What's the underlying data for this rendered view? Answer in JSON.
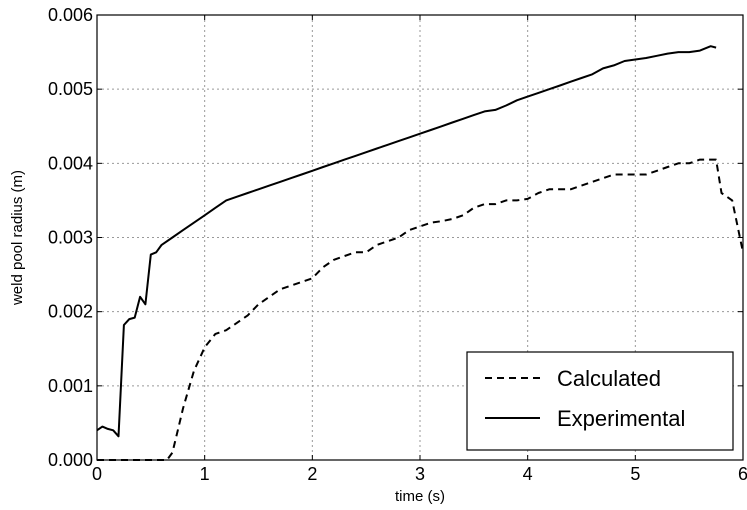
{
  "chart_data": {
    "type": "line",
    "xlabel": "time (s)",
    "ylabel": "weld pool radius (m)",
    "xlim": [
      0,
      6
    ],
    "ylim": [
      0,
      0.006
    ],
    "xticks": [
      "0",
      "1",
      "2",
      "3",
      "4",
      "5",
      "6"
    ],
    "yticks": [
      "0.000",
      "0.001",
      "0.002",
      "0.003",
      "0.004",
      "0.005",
      "0.006"
    ],
    "grid": true,
    "legend_position": "lower-right",
    "series": [
      {
        "name": "Calculated",
        "style": "dashed",
        "color": "#000000",
        "x": [
          0,
          0.65,
          0.7,
          0.75,
          0.8,
          0.9,
          1.0,
          1.1,
          1.2,
          1.3,
          1.4,
          1.5,
          1.6,
          1.7,
          1.8,
          1.9,
          2.0,
          2.1,
          2.2,
          2.3,
          2.4,
          2.5,
          2.6,
          2.7,
          2.8,
          2.9,
          3.0,
          3.1,
          3.2,
          3.3,
          3.4,
          3.5,
          3.6,
          3.7,
          3.8,
          3.9,
          4.0,
          4.1,
          4.2,
          4.3,
          4.4,
          4.5,
          4.6,
          4.7,
          4.8,
          4.9,
          5.0,
          5.1,
          5.2,
          5.3,
          5.4,
          5.5,
          5.6,
          5.7,
          5.75,
          5.8,
          5.9,
          6.0
        ],
        "y": [
          0,
          0,
          0.0001,
          0.0004,
          0.0007,
          0.0012,
          0.00152,
          0.0017,
          0.00175,
          0.00185,
          0.00195,
          0.0021,
          0.0022,
          0.0023,
          0.00235,
          0.0024,
          0.00245,
          0.0026,
          0.0027,
          0.00275,
          0.0028,
          0.0028,
          0.0029,
          0.00295,
          0.003,
          0.0031,
          0.00315,
          0.0032,
          0.00322,
          0.00325,
          0.0033,
          0.0034,
          0.00345,
          0.00345,
          0.0035,
          0.0035,
          0.00352,
          0.0036,
          0.00365,
          0.00365,
          0.00365,
          0.0037,
          0.00375,
          0.0038,
          0.00385,
          0.00385,
          0.00385,
          0.00385,
          0.0039,
          0.00395,
          0.004,
          0.004,
          0.00405,
          0.00405,
          0.00405,
          0.0036,
          0.0035,
          0.0028
        ]
      },
      {
        "name": "Experimental",
        "style": "solid",
        "color": "#000000",
        "x": [
          0,
          0.05,
          0.1,
          0.15,
          0.2,
          0.25,
          0.3,
          0.35,
          0.4,
          0.45,
          0.5,
          0.55,
          0.6,
          0.7,
          0.8,
          0.9,
          1.0,
          1.1,
          1.2,
          1.3,
          1.4,
          1.5,
          1.6,
          1.7,
          1.8,
          1.9,
          2.0,
          2.1,
          2.2,
          2.3,
          2.4,
          2.5,
          2.6,
          2.7,
          2.8,
          2.9,
          3.0,
          3.1,
          3.2,
          3.3,
          3.4,
          3.5,
          3.6,
          3.7,
          3.8,
          3.9,
          4.0,
          4.1,
          4.2,
          4.3,
          4.4,
          4.5,
          4.6,
          4.7,
          4.8,
          4.9,
          5.0,
          5.1,
          5.2,
          5.3,
          5.4,
          5.5,
          5.6,
          5.7,
          5.75
        ],
        "y": [
          0.0004,
          0.00045,
          0.00042,
          0.0004,
          0.00032,
          0.00182,
          0.0019,
          0.00192,
          0.0022,
          0.0021,
          0.00277,
          0.0028,
          0.0029,
          0.003,
          0.0031,
          0.0032,
          0.0033,
          0.0034,
          0.0035,
          0.00355,
          0.0036,
          0.00365,
          0.0037,
          0.00375,
          0.0038,
          0.00385,
          0.0039,
          0.00395,
          0.004,
          0.00405,
          0.0041,
          0.00415,
          0.0042,
          0.00425,
          0.0043,
          0.00435,
          0.0044,
          0.00445,
          0.0045,
          0.00455,
          0.0046,
          0.00465,
          0.0047,
          0.00472,
          0.00478,
          0.00485,
          0.0049,
          0.00495,
          0.005,
          0.00505,
          0.0051,
          0.00515,
          0.0052,
          0.00528,
          0.00532,
          0.00538,
          0.0054,
          0.00542,
          0.00545,
          0.00548,
          0.0055,
          0.0055,
          0.00552,
          0.00558,
          0.00556
        ]
      }
    ]
  }
}
